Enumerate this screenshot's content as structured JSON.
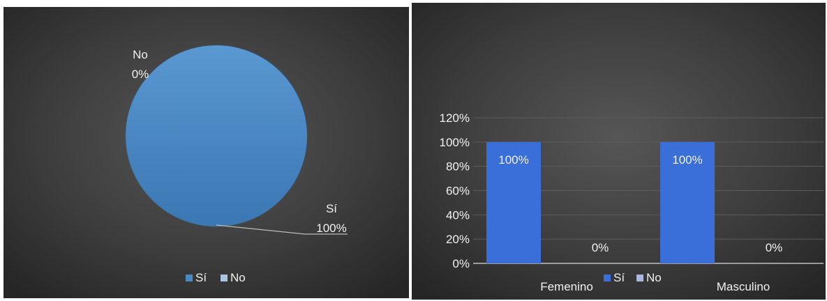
{
  "charts": {
    "pie": {
      "slice_labels": [
        {
          "name": "Sí",
          "pct": "100%"
        },
        {
          "name": "No",
          "pct": "0%"
        }
      ],
      "legend": [
        "Sí",
        "No"
      ]
    },
    "bar": {
      "y_ticks": [
        "0%",
        "20%",
        "40%",
        "60%",
        "80%",
        "100%",
        "120%"
      ],
      "categories": [
        "Femenino",
        "Masculino"
      ],
      "legend": [
        "Sí",
        "No"
      ],
      "data_labels": [
        [
          "100%",
          "100%"
        ],
        [
          "0%",
          "0%"
        ]
      ]
    }
  },
  "chart_data": [
    {
      "type": "pie",
      "categories": [
        "Sí",
        "No"
      ],
      "values": [
        100,
        0
      ],
      "labels": [
        "100%",
        "0%"
      ],
      "legend_position": "bottom",
      "colors": [
        "#4a88c4",
        "#a9c4e4"
      ]
    },
    {
      "type": "bar",
      "categories": [
        "Femenino",
        "Masculino"
      ],
      "series": [
        {
          "name": "Sí",
          "values": [
            100,
            100
          ],
          "color": "#3a6ed8"
        },
        {
          "name": "No",
          "values": [
            0,
            0
          ],
          "color": "#a9b8dc"
        }
      ],
      "ylim": [
        0,
        120
      ],
      "y_unit": "%",
      "grid": true,
      "legend_position": "bottom"
    }
  ]
}
